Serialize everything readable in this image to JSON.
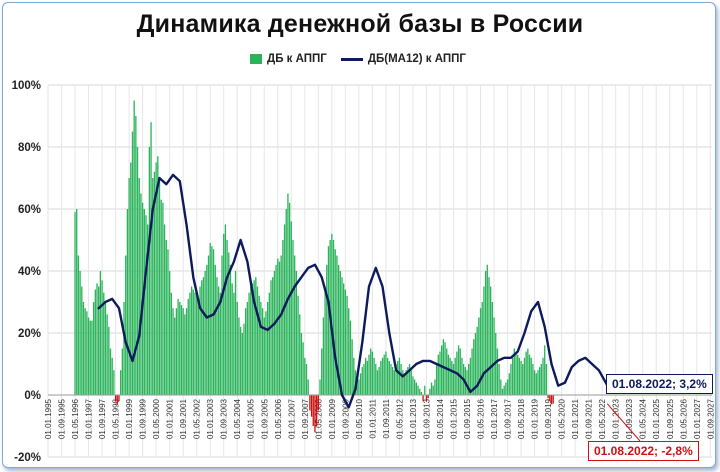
{
  "chart_data": {
    "type": "bar",
    "title": "Динамика денежной базы в России",
    "legend": [
      "ДБ к АППГ",
      "ДБ(МА12) к АППГ"
    ],
    "legend_position": "top",
    "y_axis": {
      "min": -20,
      "max": 100,
      "ticks": [
        "-20%",
        "0%",
        "20%",
        "40%",
        "60%",
        "80%",
        "100%"
      ]
    },
    "x_tick_labels": [
      "01.01.1995",
      "01.09.1995",
      "01.05.1996",
      "01.01.1997",
      "01.09.1997",
      "01.05.1998",
      "01.01.1999",
      "01.09.1999",
      "01.05.2000",
      "01.01.2001",
      "01.09.2001",
      "01.05.2002",
      "01.01.2003",
      "01.09.2003",
      "01.05.2004",
      "01.01.2005",
      "01.09.2005",
      "01.05.2006",
      "01.01.2007",
      "01.09.2007",
      "01.05.2008",
      "01.01.2009",
      "01.09.2009",
      "01.05.2010",
      "01.01.2011",
      "01.09.2011",
      "01.05.2012",
      "01.01.2013",
      "01.09.2013",
      "01.05.2014",
      "01.01.2015",
      "01.09.2015",
      "01.05.2016",
      "01.01.2017",
      "01.09.2017",
      "01.05.2018",
      "01.01.2019",
      "01.09.2019",
      "01.05.2020",
      "01.01.2021",
      "01.09.2021",
      "01.05.2022",
      "01.01.2023",
      "01.09.2023",
      "01.05.2024",
      "01.01.2025",
      "01.09.2025",
      "01.05.2026",
      "01.01.2027",
      "01.09.2027"
    ],
    "grid": true,
    "series": [
      {
        "name": "ДБ к АППГ",
        "kind": "bar",
        "color": "#2ab35a",
        "negative_color": "#d01010",
        "start_month": "1996-05",
        "values": [
          59,
          60,
          45,
          40,
          35,
          30,
          28,
          27,
          25,
          24,
          24,
          30,
          34,
          36,
          35,
          40,
          37,
          33,
          30,
          26,
          22,
          15,
          12,
          8,
          -2,
          -3,
          -2,
          8,
          15,
          30,
          45,
          60,
          70,
          75,
          85,
          95,
          90,
          80,
          70,
          65,
          62,
          60,
          58,
          55,
          80,
          88,
          70,
          72,
          75,
          77,
          70,
          63,
          62,
          55,
          50,
          47,
          40,
          33,
          28,
          25,
          28,
          31,
          30,
          29,
          28,
          26,
          28,
          31,
          33,
          35,
          34,
          33,
          33,
          31,
          35,
          37,
          38,
          40,
          42,
          45,
          49,
          48,
          47,
          42,
          38,
          35,
          33,
          45,
          52,
          55,
          50,
          46,
          42,
          36,
          33,
          40,
          30,
          25,
          22,
          20,
          23,
          28,
          30,
          33,
          35,
          36,
          37,
          38,
          35,
          32,
          30,
          28,
          25,
          27,
          30,
          33,
          37,
          38,
          40,
          42,
          44,
          43,
          45,
          50,
          55,
          60,
          65,
          62,
          56,
          50,
          45,
          40,
          32,
          26,
          20,
          17,
          12,
          10,
          5,
          -5,
          -7,
          -10,
          -12,
          -10,
          -5,
          5,
          15,
          25,
          35,
          42,
          48,
          50,
          52,
          50,
          47,
          45,
          42,
          40,
          38,
          36,
          34,
          32,
          28,
          24,
          18,
          12,
          8,
          6,
          5,
          7,
          9,
          10,
          12,
          11,
          13,
          15,
          14,
          12,
          10,
          8,
          9,
          11,
          12,
          13,
          14,
          12,
          11,
          10,
          9,
          8,
          10,
          11,
          12,
          10,
          8,
          7,
          8,
          9,
          10,
          8,
          6,
          5,
          4,
          3,
          2,
          1,
          -2,
          3,
          -2,
          -1,
          2,
          4,
          3,
          5,
          10,
          13,
          14,
          16,
          18,
          17,
          15,
          13,
          12,
          11,
          10,
          12,
          14,
          16,
          15,
          12,
          10,
          9,
          8,
          10,
          12,
          15,
          18,
          20,
          22,
          25,
          28,
          30,
          35,
          40,
          42,
          38,
          35,
          30,
          25,
          20,
          15,
          10,
          5,
          2,
          3,
          4,
          5,
          7,
          10,
          12,
          15,
          14,
          13,
          12,
          11,
          10,
          12,
          14,
          15,
          13,
          12,
          10,
          8,
          7,
          8,
          9,
          10,
          12,
          16,
          10,
          -1,
          -2,
          -3,
          -2.8
        ]
      },
      {
        "name": "ДБ(МА12) к АППГ",
        "kind": "line",
        "color": "#0d1a5c",
        "start_month": "1997-07",
        "points": [
          [
            "1997-07",
            28
          ],
          [
            "1997-11",
            30
          ],
          [
            "1998-03",
            31
          ],
          [
            "1998-07",
            28
          ],
          [
            "1998-11",
            17
          ],
          [
            "1999-03",
            11
          ],
          [
            "1999-07",
            19
          ],
          [
            "1999-11",
            40
          ],
          [
            "2000-03",
            60
          ],
          [
            "2000-07",
            70
          ],
          [
            "2000-11",
            68
          ],
          [
            "2001-03",
            71
          ],
          [
            "2001-07",
            69
          ],
          [
            "2001-11",
            55
          ],
          [
            "2002-03",
            38
          ],
          [
            "2002-07",
            28
          ],
          [
            "2002-11",
            25
          ],
          [
            "2003-03",
            26
          ],
          [
            "2003-07",
            30
          ],
          [
            "2003-11",
            38
          ],
          [
            "2004-03",
            43
          ],
          [
            "2004-07",
            50
          ],
          [
            "2004-11",
            43
          ],
          [
            "2005-03",
            30
          ],
          [
            "2005-07",
            22
          ],
          [
            "2005-11",
            21
          ],
          [
            "2006-03",
            23
          ],
          [
            "2006-07",
            26
          ],
          [
            "2006-11",
            31
          ],
          [
            "2007-03",
            35
          ],
          [
            "2007-07",
            38
          ],
          [
            "2007-11",
            41
          ],
          [
            "2008-03",
            42
          ],
          [
            "2008-07",
            38
          ],
          [
            "2008-11",
            30
          ],
          [
            "2009-03",
            12
          ],
          [
            "2009-07",
            0
          ],
          [
            "2009-11",
            -4
          ],
          [
            "2010-03",
            2
          ],
          [
            "2010-07",
            17
          ],
          [
            "2010-11",
            35
          ],
          [
            "2011-03",
            41
          ],
          [
            "2011-07",
            35
          ],
          [
            "2011-11",
            20
          ],
          [
            "2012-03",
            8
          ],
          [
            "2012-07",
            6
          ],
          [
            "2012-11",
            8
          ],
          [
            "2013-03",
            10
          ],
          [
            "2013-07",
            11
          ],
          [
            "2013-11",
            11
          ],
          [
            "2014-03",
            10
          ],
          [
            "2014-07",
            9
          ],
          [
            "2014-11",
            8
          ],
          [
            "2015-03",
            7
          ],
          [
            "2015-07",
            5
          ],
          [
            "2015-11",
            1
          ],
          [
            "2016-03",
            3
          ],
          [
            "2016-07",
            7
          ],
          [
            "2016-11",
            9
          ],
          [
            "2017-03",
            11
          ],
          [
            "2017-07",
            12
          ],
          [
            "2017-11",
            12
          ],
          [
            "2018-03",
            14
          ],
          [
            "2018-07",
            20
          ],
          [
            "2018-11",
            27
          ],
          [
            "2019-03",
            30
          ],
          [
            "2019-07",
            22
          ],
          [
            "2019-11",
            10
          ],
          [
            "2020-03",
            3
          ],
          [
            "2020-07",
            4
          ],
          [
            "2020-11",
            9
          ],
          [
            "2021-03",
            11
          ],
          [
            "2021-07",
            12
          ],
          [
            "2021-11",
            10
          ],
          [
            "2022-03",
            8
          ],
          [
            "2022-08",
            3.2
          ]
        ]
      }
    ],
    "annotations": [
      {
        "date": "01.08.2022",
        "value": 3.2,
        "label": "01.08.2022; 3,2%",
        "series": "ДБ(МА12) к АППГ"
      },
      {
        "date": "01.08.2022",
        "value": -2.8,
        "label": "01.08.2022; -2,8%",
        "series": "ДБ к АППГ"
      }
    ]
  }
}
